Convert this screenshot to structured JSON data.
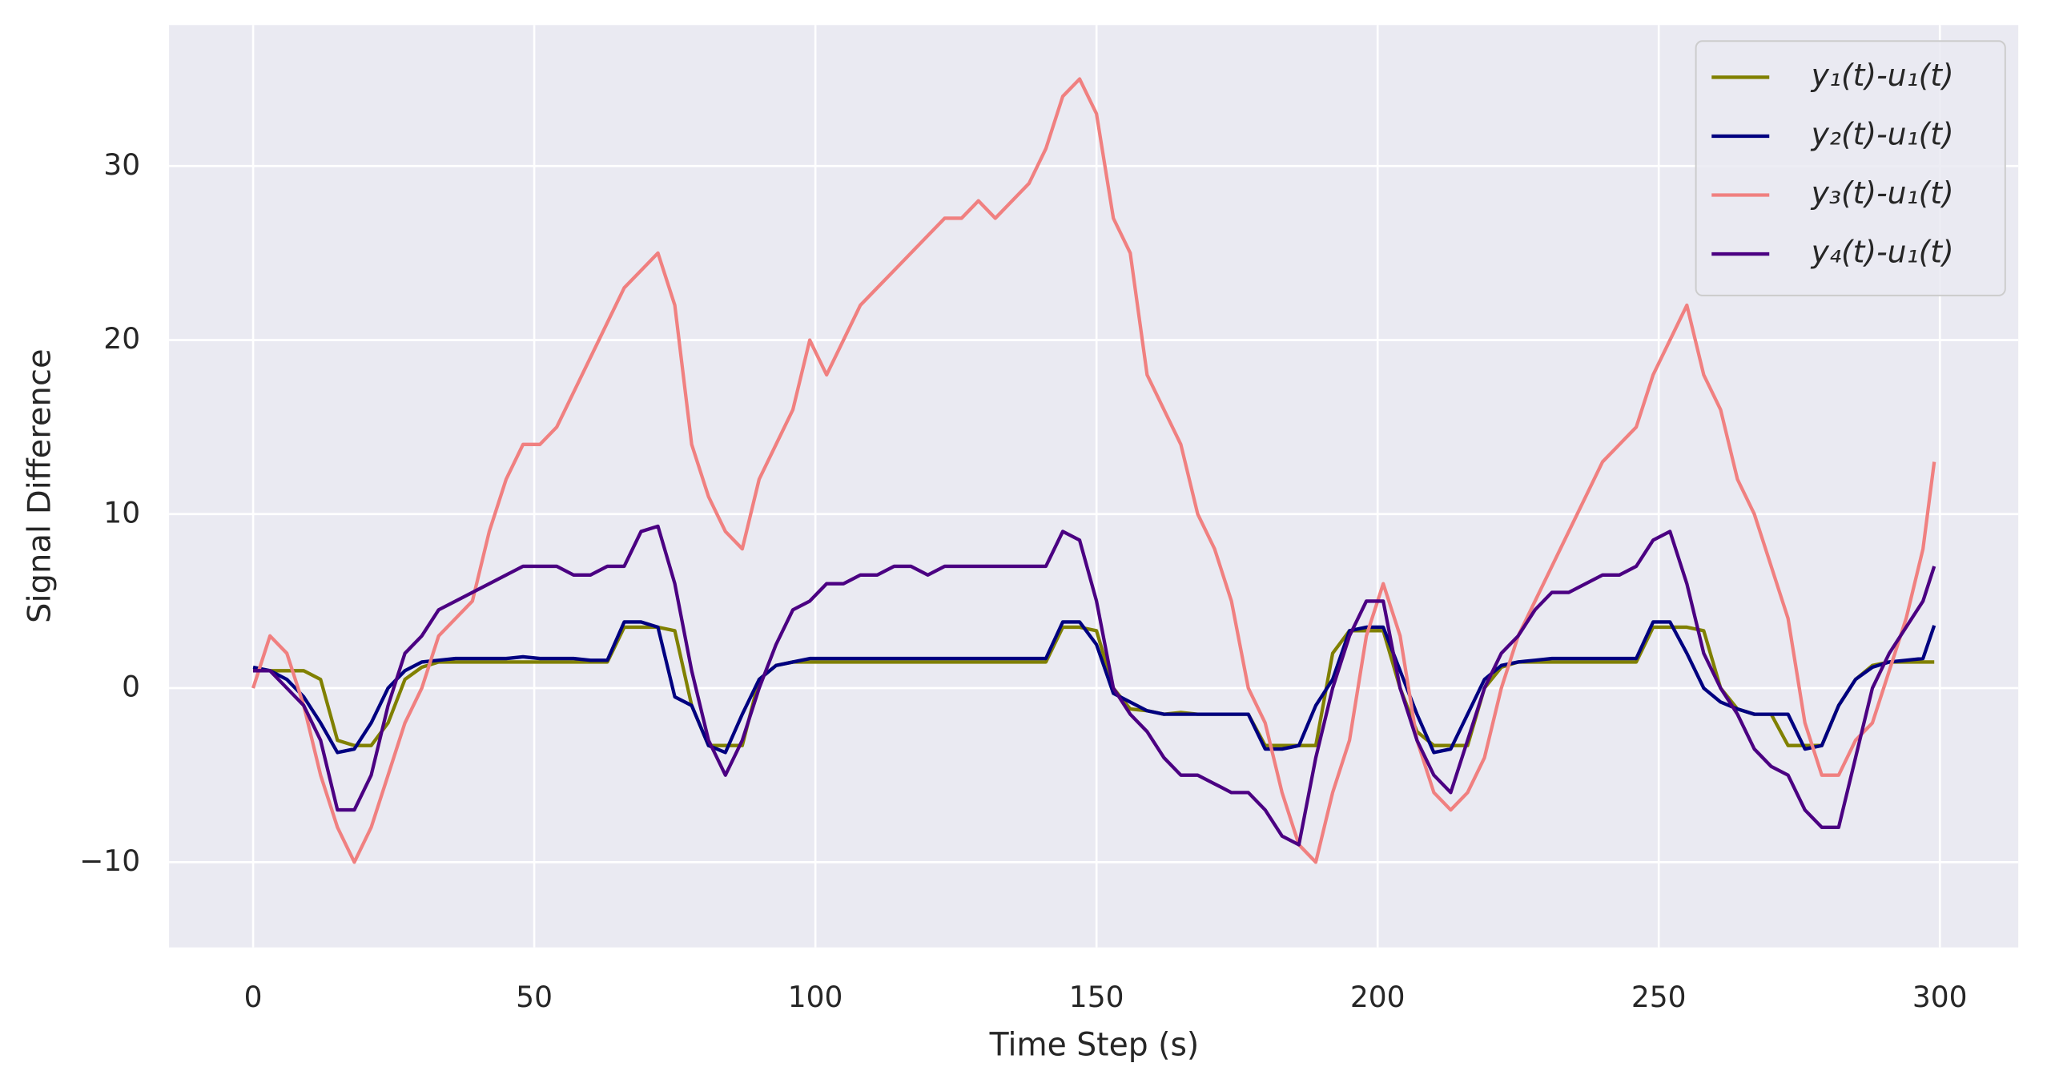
{
  "chart_data": {
    "type": "line",
    "xlabel": "Time Step (s)",
    "ylabel": "Signal Difference",
    "x": [
      0,
      3,
      6,
      9,
      12,
      15,
      18,
      21,
      24,
      27,
      30,
      33,
      36,
      39,
      42,
      45,
      48,
      51,
      54,
      57,
      60,
      63,
      66,
      69,
      72,
      75,
      78,
      81,
      84,
      87,
      90,
      93,
      96,
      99,
      102,
      105,
      108,
      111,
      114,
      117,
      120,
      123,
      126,
      129,
      132,
      135,
      138,
      141,
      144,
      147,
      150,
      153,
      156,
      159,
      162,
      165,
      168,
      171,
      174,
      177,
      180,
      183,
      186,
      189,
      192,
      195,
      198,
      201,
      204,
      207,
      210,
      213,
      216,
      219,
      222,
      225,
      228,
      231,
      234,
      237,
      240,
      243,
      246,
      249,
      252,
      255,
      258,
      261,
      264,
      267,
      270,
      273,
      276,
      279,
      282,
      285,
      288,
      291,
      294,
      297,
      299
    ],
    "series": [
      {
        "name": "y₁(t)-u₁(t)",
        "color": "#808000",
        "values": [
          1,
          1,
          1,
          1,
          0.5,
          -3,
          -3.3,
          -3.3,
          -2,
          0.5,
          1.2,
          1.5,
          1.5,
          1.5,
          1.5,
          1.5,
          1.5,
          1.5,
          1.5,
          1.5,
          1.5,
          1.5,
          3.5,
          3.5,
          3.5,
          3.3,
          -1,
          -3.3,
          -3.3,
          -3.3,
          0.5,
          1.3,
          1.5,
          1.5,
          1.5,
          1.5,
          1.5,
          1.5,
          1.5,
          1.5,
          1.5,
          1.5,
          1.5,
          1.5,
          1.5,
          1.5,
          1.5,
          1.5,
          3.5,
          3.5,
          3.3,
          0,
          -1.2,
          -1.3,
          -1.5,
          -1.4,
          -1.5,
          -1.5,
          -1.5,
          -1.5,
          -3.3,
          -3.3,
          -3.3,
          -3.3,
          2,
          3.3,
          3.3,
          3.3,
          0,
          -2.5,
          -3.3,
          -3.3,
          -3.3,
          0,
          1.2,
          1.5,
          1.5,
          1.5,
          1.5,
          1.5,
          1.5,
          1.5,
          1.5,
          3.5,
          3.5,
          3.5,
          3.3,
          0,
          -1.2,
          -1.5,
          -1.5,
          -3.3,
          -3.3,
          -3.3,
          -1,
          0.5,
          1.3,
          1.5,
          1.5,
          1.5,
          1.5
        ]
      },
      {
        "name": "y₂(t)-u₁(t)",
        "color": "#000080",
        "values": [
          1.2,
          1,
          0.5,
          -0.5,
          -2,
          -3.7,
          -3.5,
          -2,
          0,
          1,
          1.5,
          1.6,
          1.7,
          1.7,
          1.7,
          1.7,
          1.8,
          1.7,
          1.7,
          1.7,
          1.6,
          1.6,
          3.8,
          3.8,
          3.5,
          -0.5,
          -1,
          -3.3,
          -3.7,
          -1.5,
          0.5,
          1.3,
          1.5,
          1.7,
          1.7,
          1.7,
          1.7,
          1.7,
          1.7,
          1.7,
          1.7,
          1.7,
          1.7,
          1.7,
          1.7,
          1.7,
          1.7,
          1.7,
          3.8,
          3.8,
          2.5,
          -0.3,
          -0.8,
          -1.3,
          -1.5,
          -1.5,
          -1.5,
          -1.5,
          -1.5,
          -1.5,
          -3.5,
          -3.5,
          -3.3,
          -1,
          0.5,
          3.3,
          3.5,
          3.5,
          1,
          -1.5,
          -3.7,
          -3.5,
          -1.5,
          0.5,
          1.3,
          1.5,
          1.6,
          1.7,
          1.7,
          1.7,
          1.7,
          1.7,
          1.7,
          3.8,
          3.8,
          2,
          0,
          -0.8,
          -1.2,
          -1.5,
          -1.5,
          -1.5,
          -3.5,
          -3.3,
          -1,
          0.5,
          1.2,
          1.5,
          1.6,
          1.7,
          3.6
        ]
      },
      {
        "name": "y₃(t)-u₁(t)",
        "color": "#f08080",
        "values": [
          0,
          3,
          2,
          -1,
          -5,
          -8,
          -10,
          -8,
          -5,
          -2,
          0,
          3,
          4,
          5,
          9,
          12,
          14,
          14,
          15,
          17,
          19,
          21,
          23,
          24,
          25,
          22,
          14,
          11,
          9,
          8,
          12,
          14,
          16,
          20,
          18,
          20,
          22,
          23,
          24,
          25,
          26,
          27,
          27,
          28,
          27,
          28,
          29,
          31,
          34,
          35,
          33,
          27,
          25,
          18,
          16,
          14,
          10,
          8,
          5,
          0,
          -2,
          -6,
          -9,
          -10,
          -6,
          -3,
          3,
          6,
          3,
          -3,
          -6,
          -7,
          -6,
          -4,
          0,
          3,
          5,
          7,
          9,
          11,
          13,
          14,
          15,
          18,
          20,
          22,
          18,
          16,
          12,
          10,
          7,
          4,
          -2,
          -5,
          -5,
          -3,
          -2,
          1,
          4,
          8,
          13
        ]
      },
      {
        "name": "y₄(t)-u₁(t)",
        "color": "#4b0082",
        "values": [
          1,
          1,
          0,
          -1,
          -3,
          -7,
          -7,
          -5,
          -1,
          2,
          3,
          4.5,
          5,
          5.5,
          6,
          6.5,
          7,
          7,
          7,
          6.5,
          6.5,
          7,
          7,
          9,
          9.3,
          6,
          1,
          -3,
          -5,
          -3,
          0,
          2.5,
          4.5,
          5,
          6,
          6,
          6.5,
          6.5,
          7,
          7,
          6.5,
          7,
          7,
          7,
          7,
          7,
          7,
          7,
          9,
          8.5,
          5,
          0,
          -1.5,
          -2.5,
          -4,
          -5,
          -5,
          -5.5,
          -6,
          -6,
          -7,
          -8.5,
          -9,
          -4,
          0,
          3,
          5,
          5,
          0,
          -3,
          -5,
          -6,
          -3,
          0,
          2,
          3,
          4.5,
          5.5,
          5.5,
          6,
          6.5,
          6.5,
          7,
          8.5,
          9,
          6,
          2,
          0,
          -1.5,
          -3.5,
          -4.5,
          -5,
          -7,
          -8,
          -8,
          -4,
          0,
          2,
          3.5,
          5,
          7
        ]
      }
    ],
    "xlim": [
      -14.95,
      313.95
    ],
    "ylim": [
      -14.9,
      38.1
    ],
    "xticks": [
      0,
      50,
      100,
      150,
      200,
      250,
      300
    ],
    "yticks": [
      {
        "value": -10,
        "label": "−10"
      },
      0,
      10,
      20,
      30
    ],
    "grid": true,
    "legend": "upper right"
  }
}
